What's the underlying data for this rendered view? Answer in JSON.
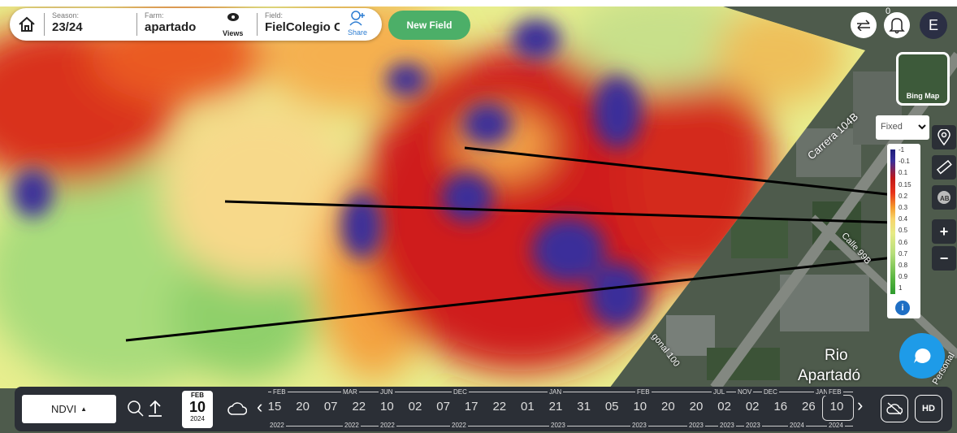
{
  "header": {
    "season_label": "Season:",
    "season": "23/24",
    "farm_label": "Farm:",
    "farm": "apartado",
    "views": "Views",
    "field_label": "Field:",
    "field": "FielColegio C",
    "share": "Share",
    "new_field": "New Field"
  },
  "notifications": "0",
  "avatar": "E",
  "basemap": "Bing Map",
  "legend_mode": "Fixed",
  "legend": [
    "-1",
    "-0.1",
    "0.1",
    "0.15",
    "0.2",
    "0.3",
    "0.4",
    "0.5",
    "0.6",
    "0.7",
    "0.8",
    "0.9",
    "1"
  ],
  "map_labels": [
    "Carrera 104B",
    "Calle 99B",
    "Rio",
    "Apartadó",
    "gonal 100",
    "Personal"
  ],
  "zoom": [
    "+",
    "−"
  ],
  "bottom": {
    "index": "NDVI",
    "selected": {
      "month": "FEB",
      "day": "10",
      "year": "2024"
    },
    "days": [
      "15",
      "20",
      "07",
      "22",
      "10",
      "02",
      "07",
      "17",
      "22",
      "01",
      "21",
      "31",
      "05",
      "10",
      "20",
      "20",
      "02",
      "02",
      "16",
      "26",
      "10"
    ],
    "months": [
      "FEB",
      "MAR",
      "JUN",
      "DEC",
      "JAN",
      "FEB",
      "JUL",
      "NOV",
      "DEC",
      "JAN",
      "FEB"
    ],
    "years": [
      "2022",
      "2022",
      "2022",
      "2022",
      "2023",
      "2023",
      "2023",
      "2023",
      "2023",
      "2024",
      "2024"
    ],
    "hd": "HD"
  }
}
